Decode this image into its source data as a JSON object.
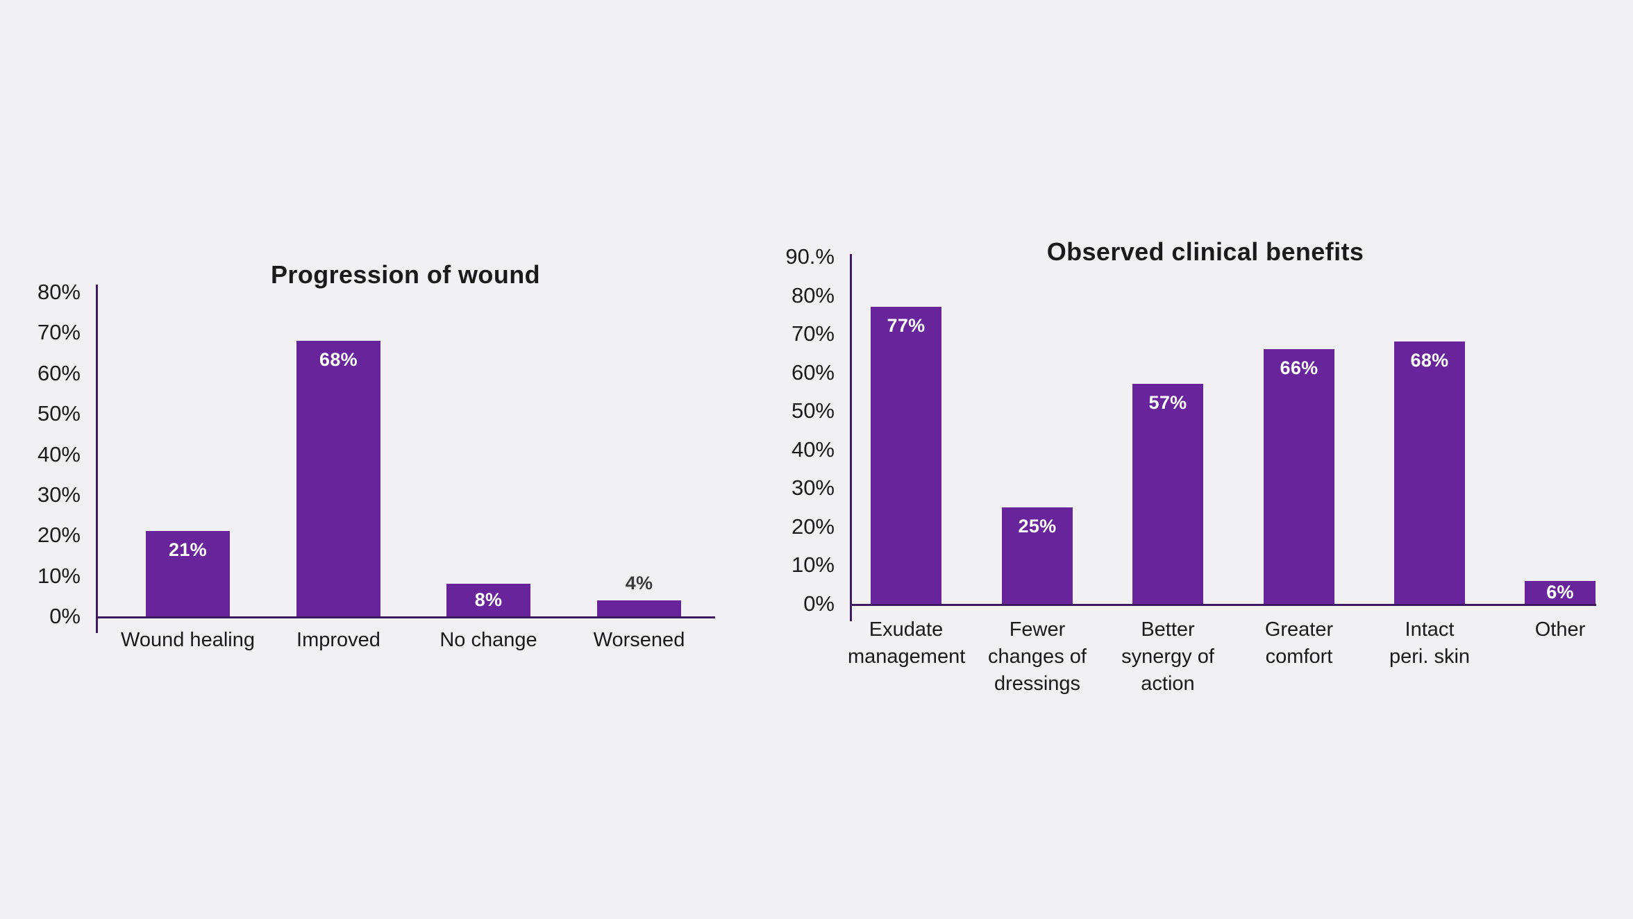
{
  "figure": {
    "background_color": "#f1f1f3",
    "bar_color": "#67249b",
    "axis_color": "#3e1a5f",
    "text_color": "#1a1a1a",
    "value_label_inside_color": "#ffffff",
    "value_label_outside_color": "#3c3c3c"
  },
  "chart_data": [
    {
      "type": "bar",
      "title": "Progression of wound",
      "categories": [
        "Wound healing",
        "Improved",
        "No change",
        "Worsened"
      ],
      "category_lines": [
        [
          "Wound healing"
        ],
        [
          "Improved"
        ],
        [
          "No change"
        ],
        [
          "Worsened"
        ]
      ],
      "values": [
        21,
        68,
        8,
        4
      ],
      "value_labels": [
        "21%",
        "68%",
        "8%",
        "4%"
      ],
      "value_label_inside": [
        true,
        true,
        true,
        false
      ],
      "yticks": [
        "80%",
        "70%",
        "60%",
        "50%",
        "40%",
        "30%",
        "20%",
        "10%",
        "0%"
      ],
      "ylim": [
        0,
        80
      ],
      "xlabel": "",
      "ylabel": "",
      "grid": false,
      "legend": "none",
      "bar_color": "#67249b"
    },
    {
      "type": "bar",
      "title": "Observed clinical benefits",
      "categories": [
        "Exudate management",
        "Fewer changes of dressings",
        "Better synergy of action",
        "Greater comfort",
        "Intact peri. skin",
        "Other"
      ],
      "category_lines": [
        [
          "Exudate",
          "management"
        ],
        [
          "Fewer",
          "changes of",
          "dressings"
        ],
        [
          "Better",
          "synergy of",
          "action"
        ],
        [
          "Greater",
          "comfort"
        ],
        [
          "Intact",
          "peri. skin"
        ],
        [
          "Other"
        ]
      ],
      "values": [
        77,
        25,
        57,
        66,
        68,
        6
      ],
      "value_labels": [
        "77%",
        "25%",
        "57%",
        "66%",
        "68%",
        "6%"
      ],
      "value_label_inside": [
        true,
        true,
        true,
        true,
        true,
        true
      ],
      "yticks": [
        "90.%",
        "80%",
        "70%",
        "60%",
        "50%",
        "40%",
        "30%",
        "20%",
        "10%",
        "0%"
      ],
      "ylim": [
        0,
        90
      ],
      "xlabel": "",
      "ylabel": "",
      "grid": false,
      "legend": "none",
      "bar_color": "#67249b"
    }
  ]
}
